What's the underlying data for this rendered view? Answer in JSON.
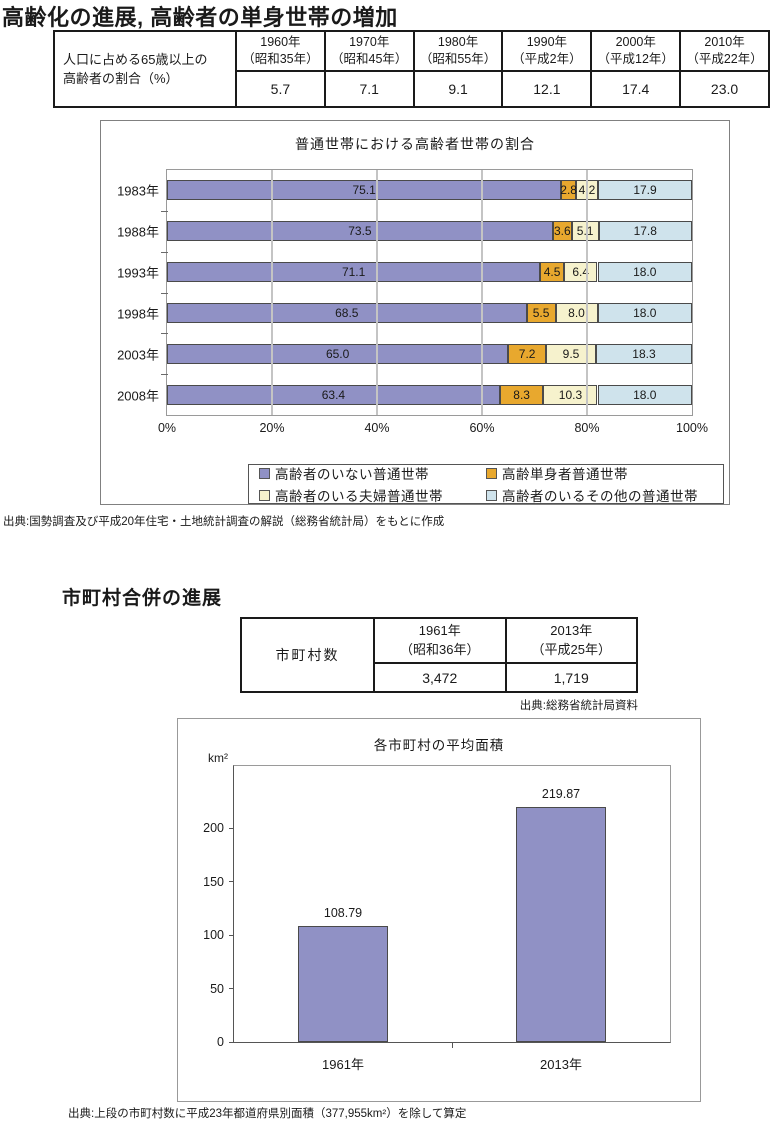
{
  "page": {
    "title1": "高齢化の進展, 高齢者の単身世帯の増加",
    "title2": "市町村合併の進展",
    "source1": "出典:国勢調査及び平成20年住宅・土地統計調査の解説（総務省統計局）をもとに作成",
    "table2_source": "出典:総務省統計局資料",
    "source2": "出典:上段の市町村数に平成23年都道府県別面積（377,955km²）を除して算定"
  },
  "table1": {
    "row_header": "人口に占める65歳以上の\n高齢者の割合（%）",
    "columns": [
      {
        "label": "1960年\n（昭和35年）",
        "value": "5.7"
      },
      {
        "label": "1970年\n（昭和45年）",
        "value": "7.1"
      },
      {
        "label": "1980年\n（昭和55年）",
        "value": "9.1"
      },
      {
        "label": "1990年\n（平成2年）",
        "value": "12.1"
      },
      {
        "label": "2000年\n（平成12年）",
        "value": "17.4"
      },
      {
        "label": "2010年\n（平成22年）",
        "value": "23.0"
      }
    ]
  },
  "table2": {
    "row_header": "市町村数",
    "columns": [
      {
        "label": "1961年\n（昭和36年）",
        "value": "3,472"
      },
      {
        "label": "2013年\n（平成25年）",
        "value": "1,719"
      }
    ]
  },
  "chart_data": [
    {
      "type": "bar",
      "variant": "stacked-horizontal",
      "title": "普通世帯における高齢者世帯の割合",
      "categories": [
        "1983年",
        "1988年",
        "1993年",
        "1998年",
        "2003年",
        "2008年"
      ],
      "series": [
        {
          "name": "高齢者のいない普通世帯",
          "color": "#9091c5",
          "values": [
            75.1,
            73.5,
            71.1,
            68.5,
            65.0,
            63.4
          ]
        },
        {
          "name": "高齢単身者普通世帯",
          "color": "#e8a82e",
          "values": [
            2.8,
            3.6,
            4.5,
            5.5,
            7.2,
            8.3
          ]
        },
        {
          "name": "高齢者のいる夫婦普通世帯",
          "color": "#f6f2cd",
          "values": [
            4.2,
            5.1,
            6.4,
            8.0,
            9.5,
            10.3
          ]
        },
        {
          "name": "高齢者のいるその他の普通世帯",
          "color": "#cfe3ec",
          "values": [
            17.9,
            17.8,
            18.0,
            18.0,
            18.3,
            18.0
          ]
        }
      ],
      "x_ticks": [
        "0%",
        "20%",
        "40%",
        "60%",
        "80%",
        "100%"
      ],
      "xlim": [
        0,
        100
      ],
      "grid": true,
      "legend_position": "bottom"
    },
    {
      "type": "bar",
      "title": "各市町村の平均面積",
      "unit": "km²",
      "categories": [
        "1961年",
        "2013年"
      ],
      "values": [
        108.79,
        219.87
      ],
      "value_labels": [
        "108.79",
        "219.87"
      ],
      "y_ticks": [
        0,
        50,
        100,
        150,
        200
      ],
      "ylim": [
        0,
        258
      ],
      "bar_color": "#9091c5",
      "grid": false
    }
  ]
}
